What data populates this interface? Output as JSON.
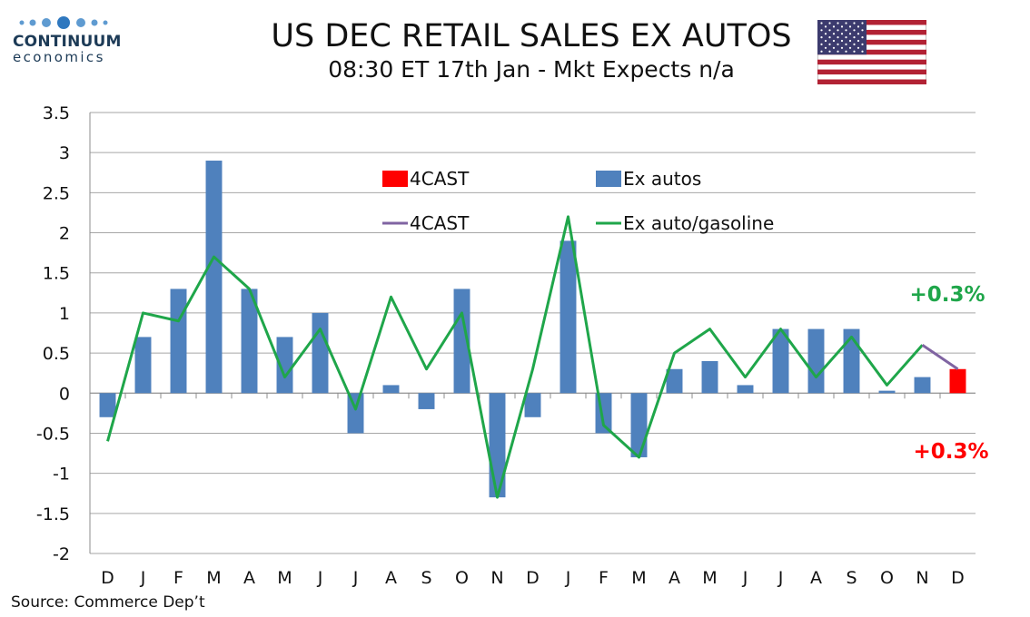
{
  "header": {
    "title": "US DEC RETAIL SALES EX AUTOS",
    "subtitle": "08:30 ET 17th Jan - Mkt Expects n/a"
  },
  "logo": {
    "name": "CONTINUUM",
    "sub": "economics",
    "color": "#1d3b57"
  },
  "flag_icon": "us-flag-icon",
  "source": "Source: Commerce Dep’t",
  "chart_data": {
    "type": "bar",
    "categories": [
      "D",
      "J",
      "F",
      "M",
      "A",
      "M",
      "J",
      "J",
      "A",
      "S",
      "O",
      "N",
      "D",
      "J",
      "F",
      "M",
      "A",
      "M",
      "J",
      "J",
      "A",
      "S",
      "O",
      "N",
      "D"
    ],
    "ylim": [
      -2,
      3.5
    ],
    "yticks": [
      3.5,
      3,
      2.5,
      2,
      1.5,
      1,
      0.5,
      0,
      -0.5,
      -1,
      -1.5,
      -2
    ],
    "ytick_labels": [
      "3.5",
      "3",
      "2.5",
      "2",
      "1.5",
      "1",
      "0.5",
      "0",
      "-0.5",
      "-1",
      "-1.5",
      "-2"
    ],
    "grid": true,
    "series": [
      {
        "name": "Ex autos",
        "kind": "bar",
        "color": "#4f81bd",
        "values": [
          -0.3,
          0.7,
          1.3,
          2.9,
          1.3,
          0.7,
          1.0,
          -0.5,
          0.1,
          -0.2,
          1.3,
          -1.3,
          -0.3,
          1.9,
          -0.5,
          -0.8,
          0.3,
          0.4,
          0.1,
          0.8,
          0.8,
          0.8,
          0.03,
          0.2,
          null
        ]
      },
      {
        "name": "4CAST",
        "kind": "bar",
        "color": "#ff0000",
        "values": [
          null,
          null,
          null,
          null,
          null,
          null,
          null,
          null,
          null,
          null,
          null,
          null,
          null,
          null,
          null,
          null,
          null,
          null,
          null,
          null,
          null,
          null,
          null,
          null,
          0.3
        ]
      },
      {
        "name": "Ex auto/gasoline",
        "kind": "line",
        "color": "#1fa64a",
        "values": [
          -0.6,
          1.0,
          0.9,
          1.7,
          1.3,
          0.2,
          0.8,
          -0.2,
          1.2,
          0.3,
          1.0,
          -1.3,
          0.3,
          2.2,
          -0.4,
          -0.8,
          0.5,
          0.8,
          0.2,
          0.8,
          0.2,
          0.7,
          0.1,
          0.6,
          null
        ]
      },
      {
        "name": "4CAST",
        "kind": "line",
        "color": "#8064a2",
        "values": [
          null,
          null,
          null,
          null,
          null,
          null,
          null,
          null,
          null,
          null,
          null,
          null,
          null,
          null,
          null,
          null,
          null,
          null,
          null,
          null,
          null,
          null,
          null,
          0.6,
          0.3
        ]
      }
    ],
    "legend": {
      "placement": "top-center",
      "items": [
        {
          "label": "4CAST",
          "marker": "box",
          "color": "#ff0000"
        },
        {
          "label": "Ex autos",
          "marker": "box",
          "color": "#4f81bd"
        },
        {
          "label": "4CAST",
          "marker": "line",
          "color": "#8064a2"
        },
        {
          "label": "Ex auto/gasoline",
          "marker": "line",
          "color": "#1fa64a"
        }
      ]
    },
    "annotations": [
      {
        "text": "+0.3%",
        "color": "#1fa64a",
        "series": "Ex auto/gasoline"
      },
      {
        "text": "+0.3%",
        "color": "#ff0000",
        "series": "4CAST"
      }
    ]
  }
}
